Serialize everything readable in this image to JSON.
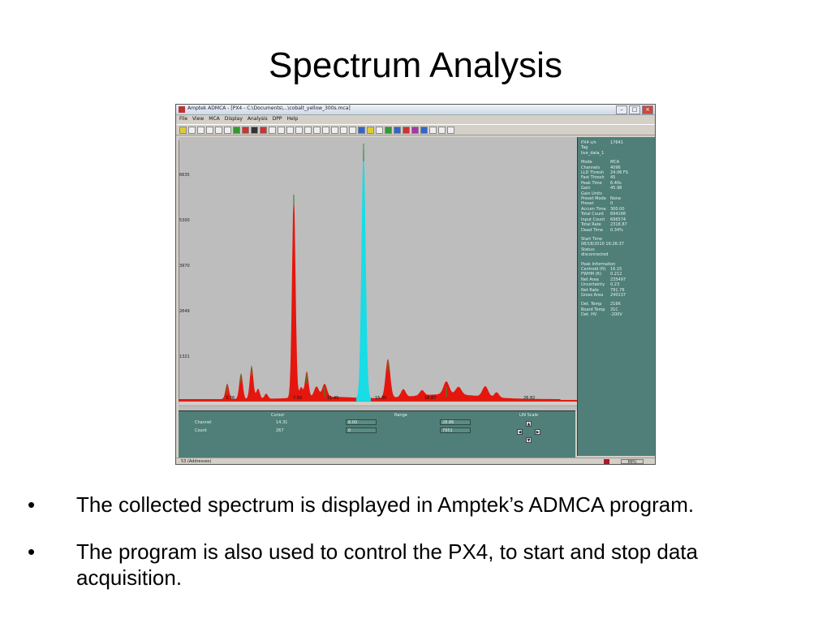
{
  "slide": {
    "title": "Spectrum Analysis",
    "bullets": [
      "The collected spectrum is displayed in Amptek’s ADMCA program.",
      "The program is also used to control the PX4, to start and stop data acquisition."
    ]
  },
  "app": {
    "title": "Amptek ADMCA - [PX4 - C:\\Documents\\...\\cobalt_yellow_300s.mca]",
    "menu": [
      "File",
      "View",
      "MCA",
      "Display",
      "Analysis",
      "DPP",
      "Help"
    ],
    "plot": {
      "y_ticks": [
        "6635",
        "5300",
        "3970",
        "2649",
        "1321"
      ],
      "x_ticks": [
        "3.76",
        "7.50",
        "11.45",
        "15.30",
        "18.87",
        "26.82"
      ],
      "colors": {
        "background": "#bdbdbd",
        "spectrum": "#e5160e",
        "roi": "#18dce6",
        "peak_top": "#3a8a2c"
      }
    },
    "info": {
      "header": [
        {
          "k": "PX4 s/n",
          "v": "17641"
        },
        {
          "k": "Tag",
          "v": ""
        },
        {
          "k": "live_data_1",
          "v": ""
        }
      ],
      "config": [
        {
          "k": "Mode",
          "v": "MCA"
        },
        {
          "k": "Channels",
          "v": "4096"
        },
        {
          "k": "LLD Thresh",
          "v": "24.06 FS"
        },
        {
          "k": "Fast Thresh",
          "v": "45"
        },
        {
          "k": "Peak Time",
          "v": "6.40s"
        },
        {
          "k": "Gain",
          "v": "45.98"
        },
        {
          "k": "Gain Units",
          "v": ""
        },
        {
          "k": "Preset Mode",
          "v": "None"
        },
        {
          "k": "Preset",
          "v": "0"
        },
        {
          "k": "Accum Time",
          "v": "300.00"
        },
        {
          "k": "Total Count",
          "v": "694166"
        },
        {
          "k": "Input Count",
          "v": "696574"
        },
        {
          "k": "Total Rate",
          "v": "2318.87"
        },
        {
          "k": "Dead Time",
          "v": "0.34%"
        }
      ],
      "time": [
        {
          "k": "Start Time",
          "v": ""
        },
        {
          "k": "08/18/2010 16:26:37",
          "v": ""
        },
        {
          "k": "Status:",
          "v": ""
        },
        {
          "k": "disconnected",
          "v": ""
        }
      ],
      "peak": [
        {
          "k": "Peak Information",
          "v": ""
        },
        {
          "k": "Centroid (ft)",
          "v": "16.15"
        },
        {
          "k": "FWHM (ft)",
          "v": "0.212"
        },
        {
          "k": "Net Area",
          "v": "235497"
        },
        {
          "k": "Uncertainty",
          "v": "0.23"
        },
        {
          "k": "Net Rate",
          "v": "791.76"
        },
        {
          "k": "Gross Area",
          "v": "240137"
        }
      ],
      "detector": [
        {
          "k": "Det. Temp",
          "v": "216K"
        },
        {
          "k": "Board Temp",
          "v": "31C"
        },
        {
          "k": "Det. HV",
          "v": "-200V"
        }
      ]
    },
    "bottom": {
      "cursor_label": "Cursor",
      "range_label": "Range",
      "scale_label": "LIN Scale",
      "channel_label": "Channel",
      "count_label": "Count",
      "cursor_channel": "14.31",
      "cursor_count": "267",
      "range_low_channel": "8.00",
      "range_low_count": "0",
      "range_high_channel": "28.86",
      "range_high_count": "7951"
    },
    "status": {
      "text": "53 (Addresses)",
      "mode": "MPU"
    }
  }
}
